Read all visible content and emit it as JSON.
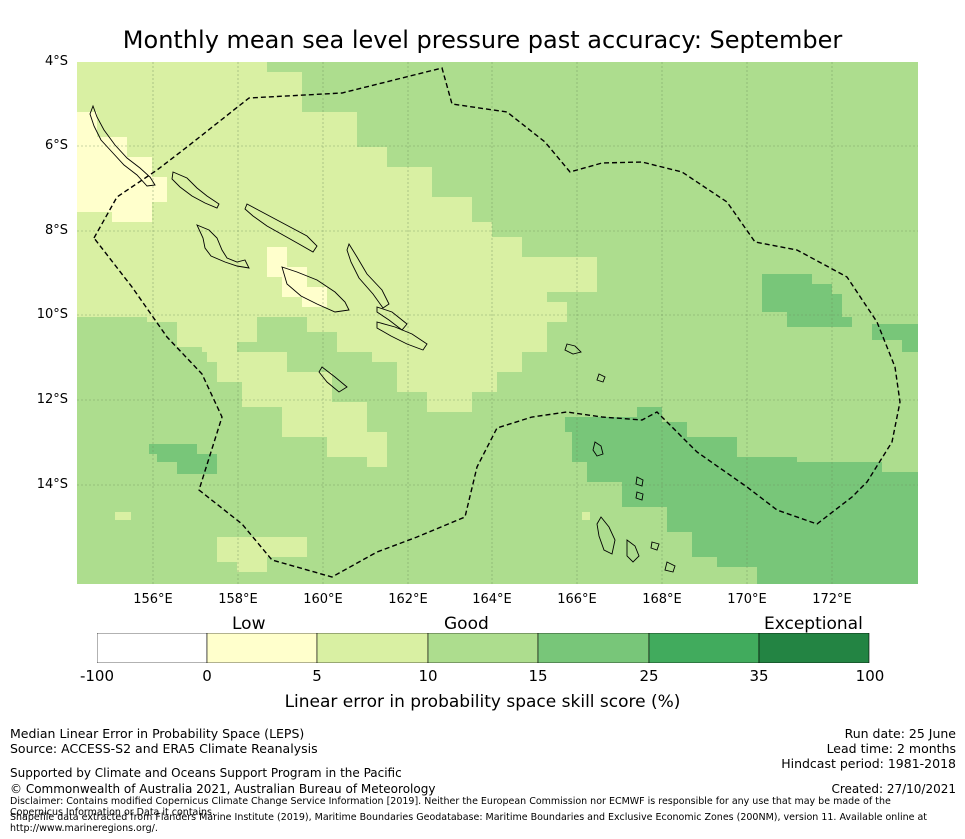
{
  "title": "Monthly mean sea level pressure past accuracy: September",
  "map": {
    "lat_labels": [
      "4°S",
      "6°S",
      "8°S",
      "10°S",
      "12°S",
      "14°S"
    ],
    "lon_labels": [
      "156°E",
      "158°E",
      "160°E",
      "162°E",
      "164°E",
      "166°E",
      "168°E",
      "170°E",
      "172°E"
    ],
    "lat_range": [
      -4,
      -16.3
    ],
    "lon_range": [
      154.2,
      174.0
    ],
    "grid": true,
    "land_outline_color": "#000000",
    "boundary_style": "dashed"
  },
  "legend": {
    "band_labels": [
      "Low",
      "Good",
      "Exceptional"
    ],
    "ticks": [
      "-100",
      "0",
      "5",
      "10",
      "15",
      "25",
      "35",
      "100"
    ],
    "colors": [
      "#ffffff",
      "#ffffcc",
      "#d9f0a3",
      "#addd8e",
      "#78c679",
      "#41ab5d",
      "#238443"
    ],
    "label": "Linear error in probability space skill score (%)"
  },
  "footer": {
    "left1": "Median Linear Error in Probability Space (LEPS)",
    "left2": "Source: ACCESS-S2 and ERA5 Climate Reanalysis",
    "support": "Supported by Climate and Oceans Support Program in the Pacific",
    "copyright": "© Commonwealth of Australia 2021, Australian Bureau of Meteorology",
    "disclaimer": "Disclaimer: Contains modified Copernicus Climate Change Service Information [2019]. Neither the European Commission nor ECMWF is responsible for any use that may be made of the Copernicus Information or Data it contains.",
    "shapefile": "Shapefile data extracted from Flanders Marine Institute (2019), Maritime Boundaries Geodatabase: Maritime Boundaries and Exclusive Economic Zones (200NM), version 11. Available online at http://www.marineregions.org/.",
    "run_date": "Run date: 25 June",
    "lead_time": "Lead time: 2 months",
    "hindcast": "Hindcast period: 1981-2018",
    "created": "Created: 27/10/2021"
  }
}
